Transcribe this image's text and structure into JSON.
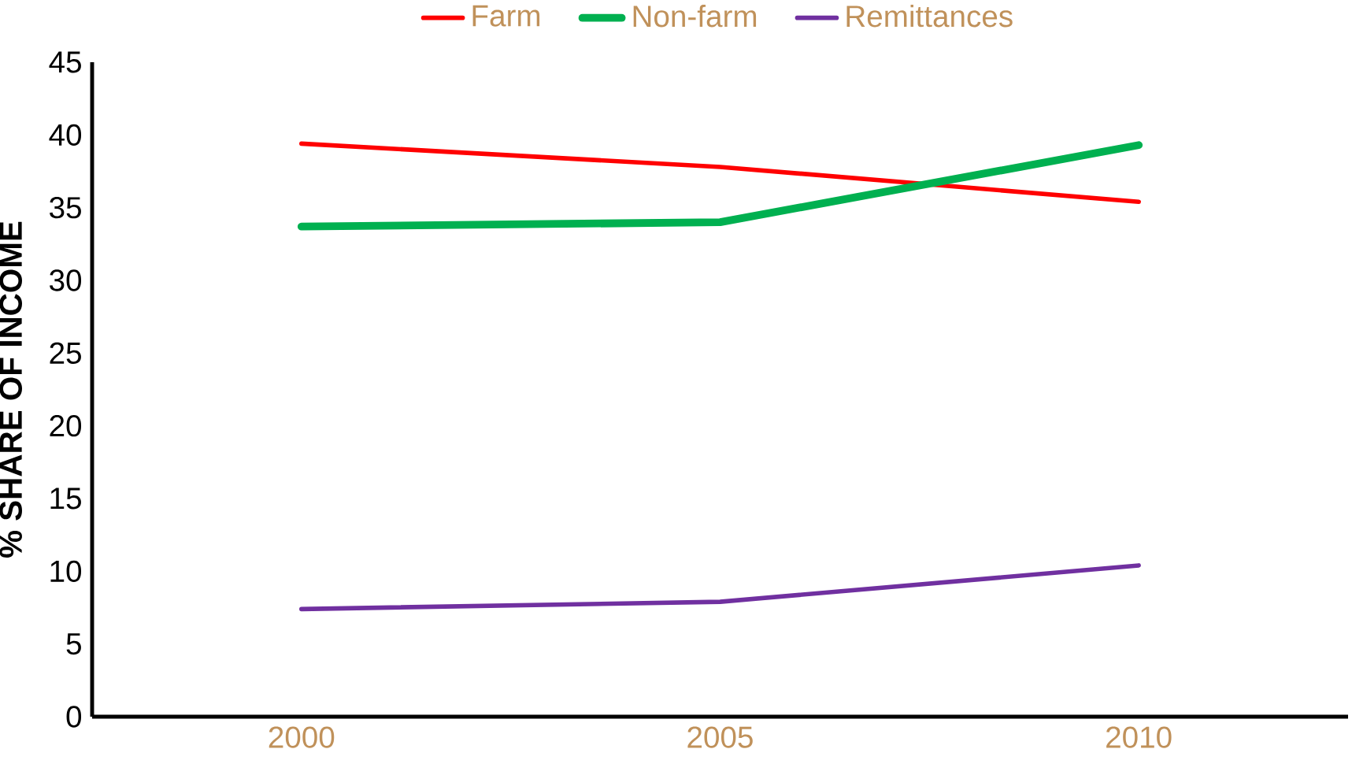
{
  "chart_data": {
    "type": "line",
    "ylabel": "% SHARE OF INCOME",
    "categories": [
      "2000",
      "2005",
      "2010"
    ],
    "series": [
      {
        "name": "Farm",
        "color": "#ff0000",
        "values": [
          39.4,
          37.8,
          35.4
        ]
      },
      {
        "name": "Non-farm",
        "color": "#00b050",
        "values": [
          33.7,
          34.0,
          39.3
        ]
      },
      {
        "name": "Remittances",
        "color": "#7030a0",
        "values": [
          7.4,
          7.9,
          10.4
        ]
      }
    ],
    "ylim": [
      0,
      45
    ],
    "yticks": [
      0,
      5,
      10,
      15,
      20,
      25,
      30,
      35,
      40,
      45
    ],
    "grid": false,
    "legend": "top",
    "marker": "none",
    "line_style": "solid"
  }
}
